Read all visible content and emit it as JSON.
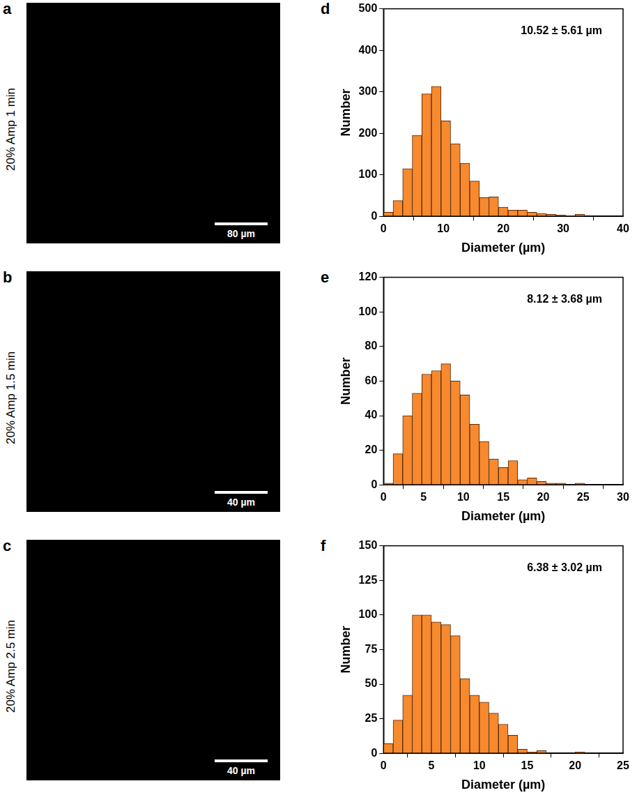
{
  "images": [
    {
      "panel": "a",
      "label": "20% Amp 1 min",
      "scale_bar": "80 µm"
    },
    {
      "panel": "b",
      "label": "20% Amp 1.5 min",
      "scale_bar": "40 µm"
    },
    {
      "panel": "c",
      "label": "20% Amp 2.5 min",
      "scale_bar": "40 µm"
    }
  ],
  "chart_data": [
    {
      "type": "histogram",
      "panel": "d",
      "annotation": "10.52 ± 5.61 µm",
      "x_label": "Diameter (µm)",
      "y_label": "Number",
      "color": "#f7892e",
      "grid": false,
      "bins": [
        0,
        1.6,
        3.2,
        4.8,
        6.4,
        8,
        9.6,
        11.2,
        12.8,
        14.4,
        16,
        17.6,
        19.2,
        20.8,
        22.4,
        24,
        25.6,
        27.2,
        28.8,
        30.4,
        32,
        33.6,
        35.2,
        36.8,
        38.4,
        40
      ],
      "values": [
        10,
        38,
        115,
        195,
        295,
        313,
        230,
        175,
        128,
        85,
        45,
        47,
        22,
        15,
        15,
        10,
        7,
        5,
        3,
        2,
        5,
        0,
        0,
        0,
        0
      ],
      "xlim": [
        0,
        40
      ],
      "xticks": [
        0,
        10,
        20,
        30,
        40
      ],
      "ylim": [
        0,
        500
      ],
      "yticks": [
        0,
        100,
        200,
        300,
        400,
        500
      ]
    },
    {
      "type": "histogram",
      "panel": "e",
      "annotation": "8.12 ± 3.68 µm",
      "x_label": "Diameter (µm)",
      "y_label": "Number",
      "color": "#f7892e",
      "grid": false,
      "bins": [
        0,
        1.2,
        2.4,
        3.6,
        4.8,
        6,
        7.2,
        8.4,
        9.6,
        10.8,
        12,
        13.2,
        14.4,
        15.6,
        16.8,
        18,
        19.2,
        20.4,
        21.6,
        22.8,
        24,
        25.2,
        26.4,
        27.6,
        28.8,
        30
      ],
      "values": [
        1,
        18,
        40,
        53,
        64,
        66,
        70,
        60,
        52,
        35,
        25,
        15,
        10,
        14,
        3,
        4,
        2,
        1,
        1,
        0,
        1,
        0,
        0,
        0,
        0
      ],
      "xlim": [
        0,
        30
      ],
      "xticks": [
        0,
        5,
        10,
        15,
        20,
        25,
        30
      ],
      "ylim": [
        0,
        120
      ],
      "yticks": [
        0,
        20,
        40,
        60,
        80,
        100,
        120
      ]
    },
    {
      "type": "histogram",
      "panel": "f",
      "annotation": "6.38 ± 3.02 µm",
      "x_label": "Diameter (µm)",
      "y_label": "Number",
      "color": "#f7892e",
      "grid": false,
      "bins": [
        0,
        1,
        2,
        3,
        4,
        5,
        6,
        7,
        8,
        9,
        10,
        11,
        12,
        13,
        14,
        15,
        16,
        17,
        18,
        19,
        20,
        21,
        22,
        23,
        24,
        25
      ],
      "values": [
        7,
        24,
        42,
        100,
        100,
        95,
        93,
        85,
        54,
        42,
        37,
        29,
        21,
        13,
        3,
        1,
        2,
        0,
        0,
        0,
        1,
        0,
        0,
        0,
        0
      ],
      "xlim": [
        0,
        25
      ],
      "xticks": [
        0,
        5,
        10,
        15,
        20,
        25
      ],
      "ylim": [
        0,
        150
      ],
      "yticks": [
        0,
        25,
        50,
        75,
        100,
        125,
        150
      ]
    }
  ]
}
